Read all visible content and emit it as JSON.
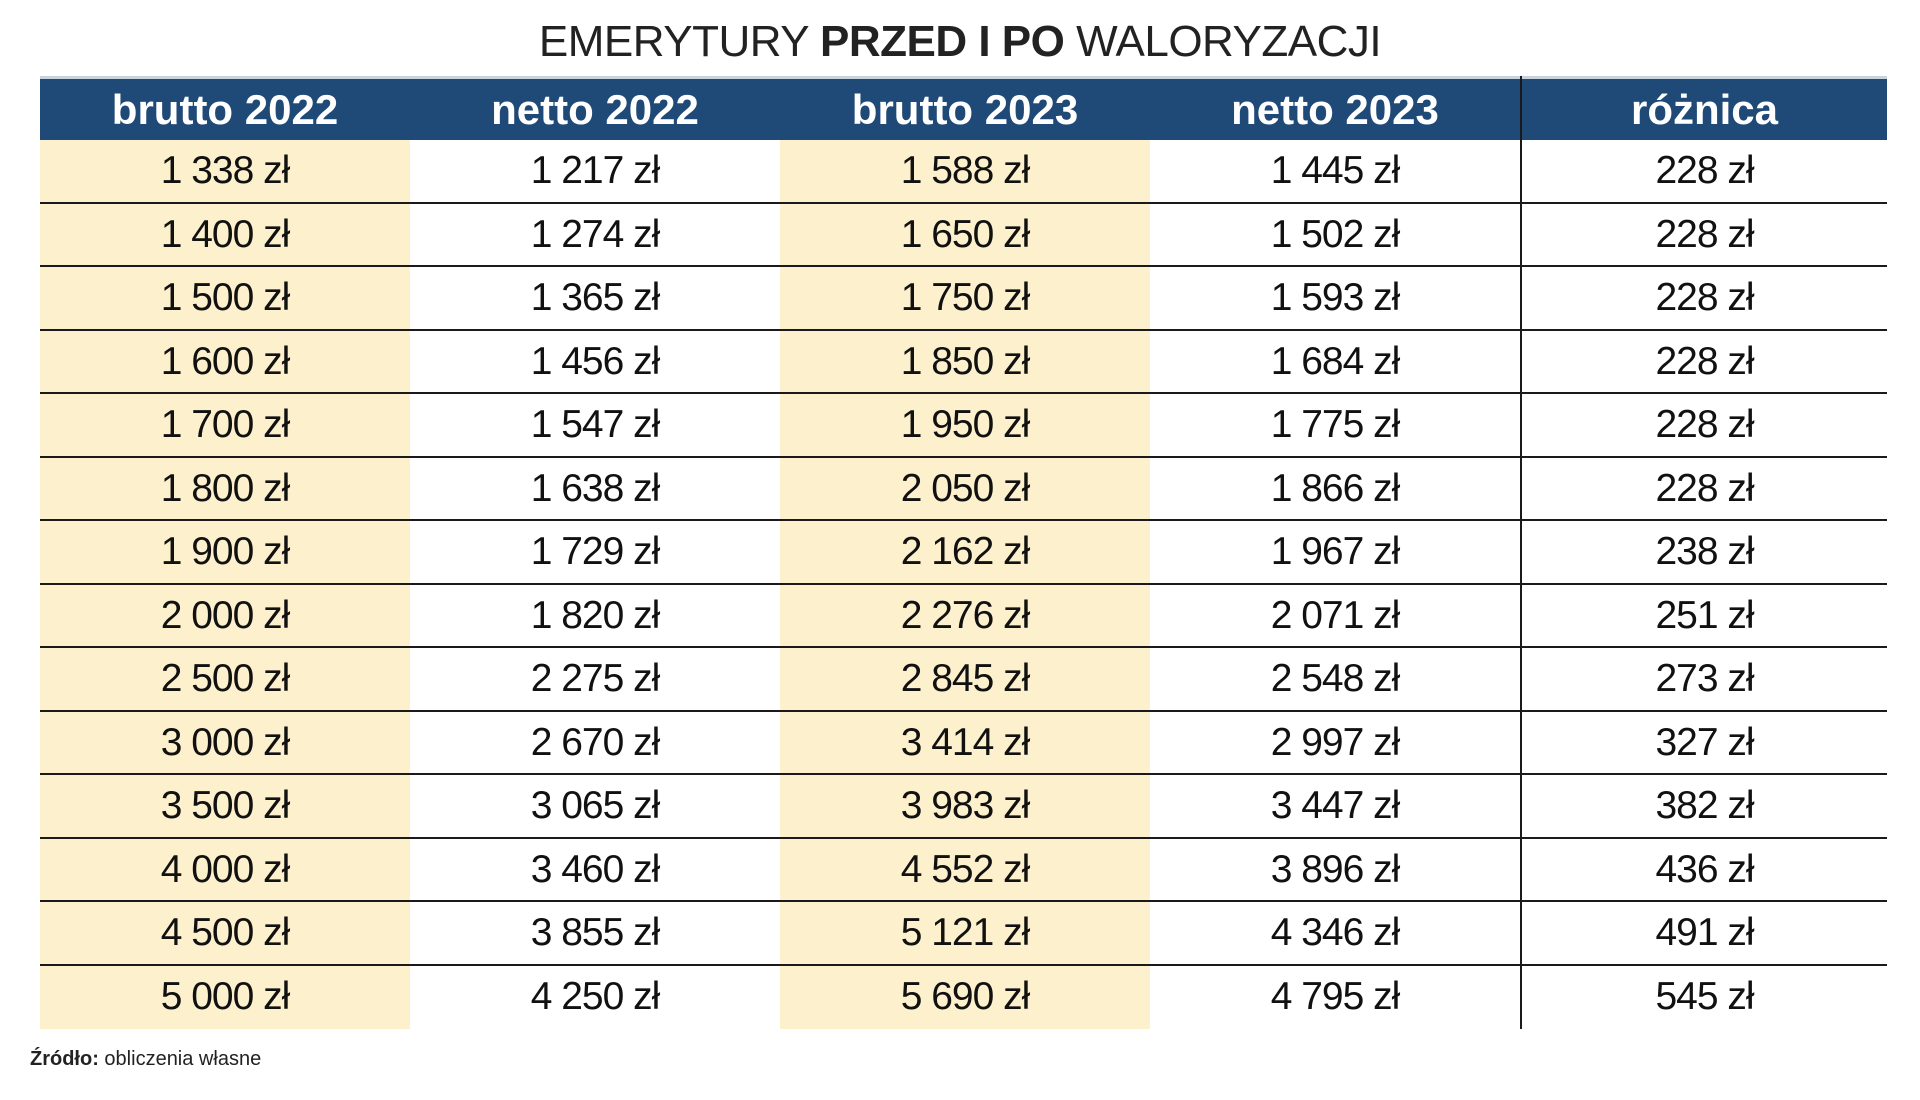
{
  "title": {
    "part1": "EMERYTURY ",
    "part2": "PRZED I PO",
    "part3": " WALORYZACJI"
  },
  "source": {
    "label": "Źródło:",
    "text": " obliczenia własne"
  },
  "colors": {
    "header_bg": "#1f4a78",
    "shade": "#fdf0cc",
    "rule": "#1a1a1a"
  },
  "chart_data": {
    "type": "table",
    "title": "EMERYTURY PRZED I PO WALORYZACJI",
    "columns": [
      "brutto 2022",
      "netto 2022",
      "brutto 2023",
      "netto 2023",
      "różnica"
    ],
    "rows": [
      [
        "1 338 zł",
        "1 217 zł",
        "1 588 zł",
        "1 445 zł",
        "228 zł"
      ],
      [
        "1 400 zł",
        "1 274 zł",
        "1 650 zł",
        "1 502 zł",
        "228 zł"
      ],
      [
        "1 500 zł",
        "1 365 zł",
        "1 750 zł",
        "1 593 zł",
        "228 zł"
      ],
      [
        "1 600 zł",
        "1 456 zł",
        "1 850 zł",
        "1 684 zł",
        "228 zł"
      ],
      [
        "1 700 zł",
        "1 547 zł",
        "1 950 zł",
        "1 775 zł",
        "228 zł"
      ],
      [
        "1 800 zł",
        "1 638 zł",
        "2 050 zł",
        "1 866 zł",
        "228 zł"
      ],
      [
        "1 900 zł",
        "1 729 zł",
        "2 162 zł",
        "1 967 zł",
        "238 zł"
      ],
      [
        "2 000 zł",
        "1 820 zł",
        "2 276 zł",
        "2 071 zł",
        "251 zł"
      ],
      [
        "2 500 zł",
        "2 275 zł",
        "2 845 zł",
        "2 548 zł",
        "273 zł"
      ],
      [
        "3 000 zł",
        "2 670 zł",
        "3 414 zł",
        "2 997 zł",
        "327 zł"
      ],
      [
        "3 500 zł",
        "3 065 zł",
        "3 983 zł",
        "3 447 zł",
        "382 zł"
      ],
      [
        "4 000 zł",
        "3 460 zł",
        "4 552 zł",
        "3 896 zł",
        "436 zł"
      ],
      [
        "4 500 zł",
        "3 855 zł",
        "5 121 zł",
        "4 346 zł",
        "491 zł"
      ],
      [
        "5 000 zł",
        "4 250 zł",
        "5 690 zł",
        "4 795 zł",
        "545 zł"
      ]
    ]
  }
}
